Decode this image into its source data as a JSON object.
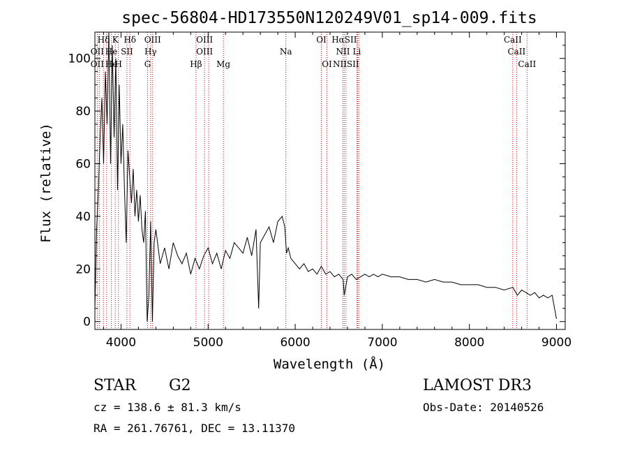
{
  "chart_data": {
    "type": "line",
    "title": "spec-56804-HD173550N120249V01_sp14-009.fits",
    "xlabel": "Wavelength (Å)",
    "ylabel": "Flux (relative)",
    "xlim": [
      3700,
      9100
    ],
    "ylim": [
      -3,
      110
    ],
    "x_ticks": [
      4000,
      5000,
      6000,
      7000,
      8000,
      9000
    ],
    "y_ticks": [
      0,
      20,
      40,
      60,
      80,
      100
    ],
    "grid": false,
    "series": [
      {
        "x": [
          3700,
          3720,
          3740,
          3760,
          3780,
          3800,
          3820,
          3840,
          3860,
          3880,
          3900,
          3920,
          3940,
          3960,
          3980,
          4000,
          4020,
          4040,
          4060,
          4080,
          4100,
          4120,
          4140,
          4160,
          4180,
          4200,
          4220,
          4240,
          4260,
          4280,
          4300,
          4320,
          4340,
          4360,
          4380,
          4400,
          4450,
          4500,
          4550,
          4600,
          4650,
          4700,
          4750,
          4800,
          4850,
          4900,
          4950,
          5000,
          5050,
          5100,
          5150,
          5200,
          5250,
          5300,
          5350,
          5400,
          5450,
          5500,
          5550,
          5580,
          5600,
          5650,
          5700,
          5750,
          5800,
          5850,
          5880,
          5900,
          5920,
          5950,
          6000,
          6050,
          6100,
          6150,
          6200,
          6250,
          6300,
          6350,
          6400,
          6450,
          6500,
          6550,
          6563,
          6600,
          6650,
          6700,
          6750,
          6800,
          6850,
          6900,
          6950,
          7000,
          7100,
          7200,
          7300,
          7400,
          7500,
          7600,
          7700,
          7800,
          7900,
          8000,
          8100,
          8200,
          8300,
          8400,
          8500,
          8550,
          8600,
          8650,
          8700,
          8750,
          8800,
          8850,
          8900,
          8950,
          9000
        ],
        "y": [
          5,
          35,
          50,
          70,
          85,
          60,
          95,
          75,
          110,
          60,
          105,
          70,
          100,
          50,
          90,
          60,
          75,
          50,
          30,
          65,
          55,
          45,
          58,
          40,
          50,
          38,
          48,
          35,
          30,
          42,
          0,
          10,
          38,
          0,
          30,
          35,
          22,
          28,
          20,
          30,
          25,
          22,
          26,
          18,
          24,
          20,
          25,
          28,
          22,
          26,
          20,
          27,
          24,
          30,
          28,
          26,
          32,
          25,
          35,
          5,
          30,
          33,
          36,
          30,
          38,
          40,
          36,
          26,
          28,
          24,
          22,
          20,
          22,
          19,
          20,
          18,
          21,
          18,
          19,
          17,
          18,
          16,
          10,
          17,
          18,
          16,
          17,
          18,
          17,
          18,
          17,
          18,
          17,
          17,
          16,
          16,
          15,
          16,
          15,
          15,
          14,
          14,
          14,
          13,
          13,
          12,
          13,
          10,
          12,
          11,
          10,
          11,
          9,
          10,
          9,
          10,
          1
        ]
      }
    ],
    "annotations": [
      {
        "text": "Hδ",
        "x": 3800,
        "row": 1
      },
      {
        "text": "K",
        "x": 3934,
        "row": 1
      },
      {
        "text": "Hδ",
        "x": 4102,
        "row": 1
      },
      {
        "text": "OII",
        "x": 3727,
        "row": 2
      },
      {
        "text": "He",
        "x": 3889,
        "row": 2
      },
      {
        "text": "SII",
        "x": 4068,
        "row": 2
      },
      {
        "text": "OII",
        "x": 3727,
        "row": 3
      },
      {
        "text": "He",
        "x": 3889,
        "row": 3
      },
      {
        "text": "H",
        "x": 3970,
        "row": 3
      },
      {
        "text": "OIII",
        "x": 4363,
        "row": 1
      },
      {
        "text": "Hγ",
        "x": 4340,
        "row": 2
      },
      {
        "text": "G",
        "x": 4305,
        "row": 3
      },
      {
        "text": "OIII",
        "x": 4959,
        "row": 1
      },
      {
        "text": "OIII",
        "x": 4959,
        "row": 2
      },
      {
        "text": "Hβ",
        "x": 4861,
        "row": 3
      },
      {
        "text": "Mg",
        "x": 5175,
        "row": 3
      },
      {
        "text": "Na",
        "x": 5893,
        "row": 2
      },
      {
        "text": "OI",
        "x": 6300,
        "row": 1
      },
      {
        "text": "OI",
        "x": 6364,
        "row": 3
      },
      {
        "text": "HαSII",
        "x": 6563,
        "row": 1
      },
      {
        "text": "NII",
        "x": 6548,
        "row": 2
      },
      {
        "text": "Li",
        "x": 6708,
        "row": 2
      },
      {
        "text": "NIISII",
        "x": 6583,
        "row": 3
      },
      {
        "text": "CaII",
        "x": 8498,
        "row": 1
      },
      {
        "text": "CaII",
        "x": 8542,
        "row": 2
      },
      {
        "text": "CaII",
        "x": 8662,
        "row": 3
      }
    ],
    "line_markers": [
      3727,
      3750,
      3798,
      3835,
      3889,
      3934,
      3970,
      4068,
      4102,
      4305,
      4340,
      4363,
      4861,
      4959,
      5007,
      5175,
      5893,
      6300,
      6364,
      6548,
      6563,
      6583,
      6708,
      6716,
      6731,
      8498,
      8542,
      8662
    ],
    "marker_color": "#cc0000"
  },
  "info": {
    "object_class": "STAR",
    "subclass": "G2",
    "survey": "LAMOST DR3",
    "redshift": "cz = 138.6 ± 81.3 km/s",
    "obs_date": "Obs-Date: 20140526",
    "coords": "RA = 261.76761, DEC =  13.11370"
  }
}
